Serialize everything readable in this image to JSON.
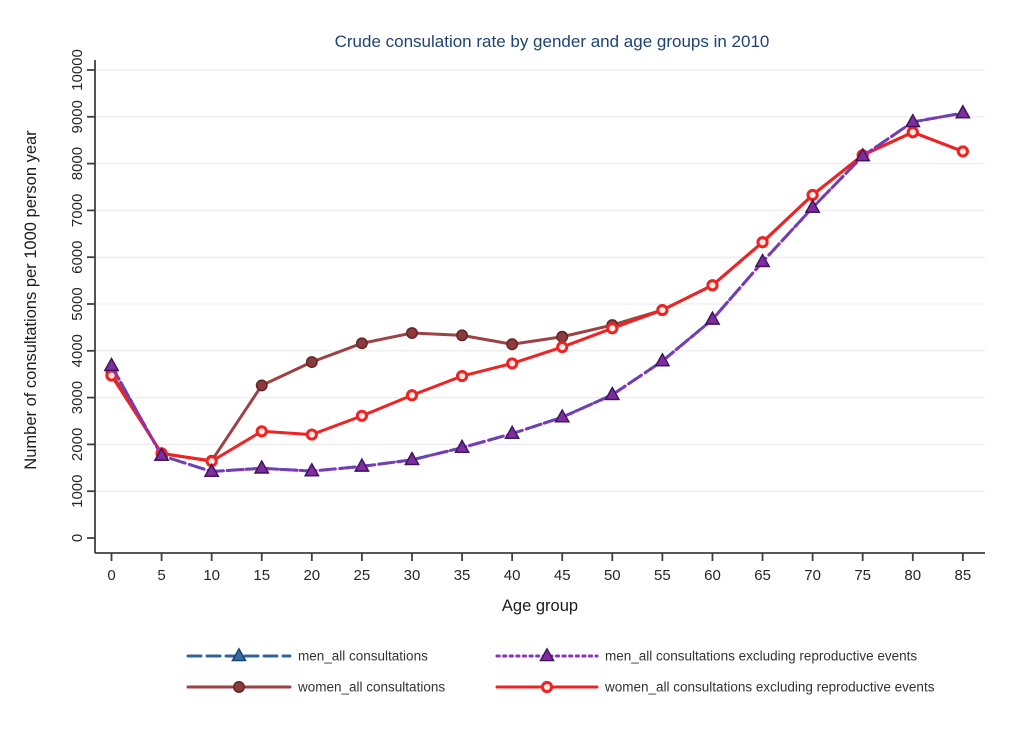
{
  "title": {
    "text": "Crude consulation rate by gender and age groups in 2010",
    "color": "#1f4271"
  },
  "axes": {
    "x": {
      "label": "Age group",
      "tick_values": [
        0,
        5,
        10,
        15,
        20,
        25,
        30,
        35,
        40,
        45,
        50,
        55,
        60,
        65,
        70,
        75,
        80,
        85
      ]
    },
    "y": {
      "label": "Number of consultations per 1000 person year",
      "tick_values": [
        0,
        1000,
        2000,
        3000,
        4000,
        5000,
        6000,
        7000,
        8000,
        9000,
        10000
      ]
    }
  },
  "chart_data": {
    "type": "line",
    "title": "Crude consulation rate by gender and age groups in 2010",
    "xlabel": "Age group",
    "ylabel": "Number of consultations per 1000 person year",
    "xlim": [
      0,
      85
    ],
    "ylim": [
      0,
      10000
    ],
    "grid": "horizontal",
    "legend_position": "bottom",
    "x": [
      0,
      5,
      10,
      15,
      20,
      25,
      30,
      35,
      40,
      45,
      50,
      55,
      60,
      65,
      70,
      75,
      80,
      85
    ],
    "series": [
      {
        "name": "men_all consultations",
        "line_style": "dashed",
        "color": "#31639c",
        "marker": "triangle",
        "marker_fill": "#2f6e9e",
        "marker_edge": "#1d3d6e",
        "z": 1,
        "values": [
          3680,
          1760,
          1420,
          1490,
          1430,
          1530,
          1670,
          1930,
          2230,
          2580,
          3060,
          3780,
          4670,
          5900,
          7060,
          8160,
          8890,
          9080
        ]
      },
      {
        "name": "men_all consultations excluding reproductive events",
        "line_style": "dotted",
        "color": "#8c2fbe",
        "marker": "triangle",
        "marker_fill": "#7d2d9c",
        "marker_edge": "#41135f",
        "z": 3,
        "values": [
          3680,
          1760,
          1420,
          1490,
          1430,
          1530,
          1670,
          1930,
          2230,
          2580,
          3060,
          3780,
          4670,
          5900,
          7060,
          8160,
          8890,
          9080
        ]
      },
      {
        "name": "women_all consultations",
        "line_style": "solid",
        "color": "#9c4244",
        "marker": "circle",
        "marker_fill": "#8e393b",
        "marker_edge": "#5f2527",
        "z": 0,
        "values": [
          3520,
          1800,
          1650,
          3260,
          3760,
          4160,
          4380,
          4330,
          4140,
          4300,
          4550,
          4870,
          5400,
          6320,
          7330,
          8180,
          8670,
          8260
        ]
      },
      {
        "name": "women_all consultations excluding reproductive events",
        "line_style": "solid",
        "color": "#ee2424",
        "marker": "circle-open",
        "marker_fill": "#fceae6",
        "marker_edge": "#ee2424",
        "z": 2,
        "values": [
          3470,
          1810,
          1640,
          2280,
          2210,
          2610,
          3050,
          3460,
          3730,
          4080,
          4480,
          4870,
          5400,
          6320,
          7330,
          8180,
          8670,
          8260
        ]
      }
    ]
  },
  "legend": {
    "entries": [
      {
        "label": "men_all consultations",
        "series": 0,
        "row": 0,
        "col": 0
      },
      {
        "label": "men_all consultations excluding reproductive events",
        "series": 1,
        "row": 0,
        "col": 1
      },
      {
        "label": "women_all consultations",
        "series": 2,
        "row": 1,
        "col": 0
      },
      {
        "label": "women_all consultations excluding reproductive events",
        "series": 3,
        "row": 1,
        "col": 1
      }
    ]
  },
  "colors": {
    "grid": "#ececec",
    "axis": "#3f3f3f",
    "background": "#ffffff"
  }
}
